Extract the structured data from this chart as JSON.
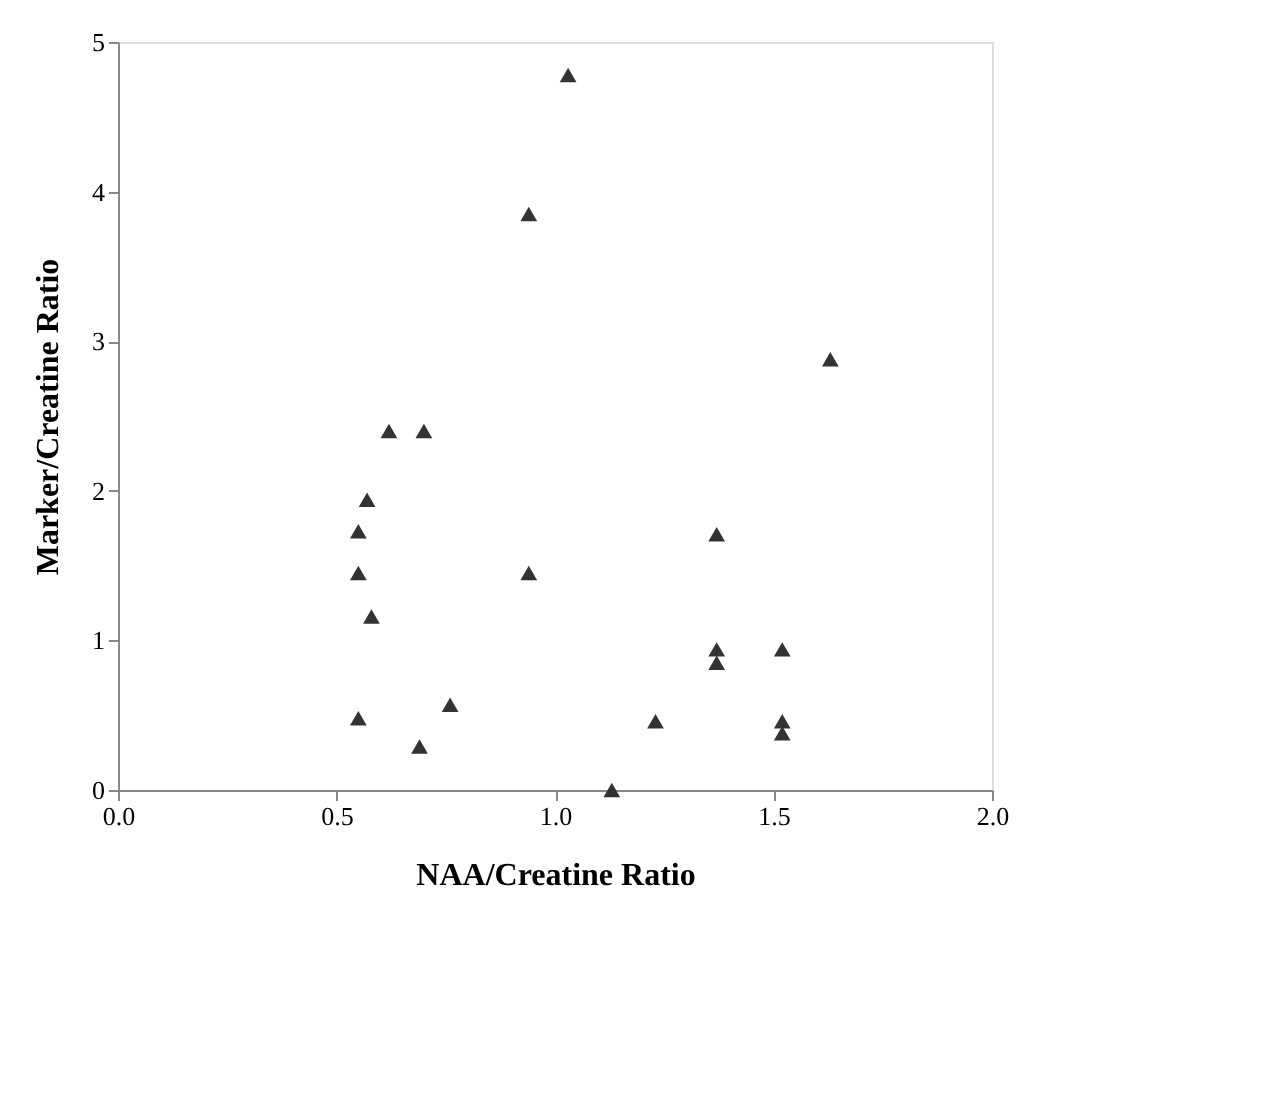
{
  "chart_data": {
    "type": "scatter",
    "xlabel": "NAA/Creatine Ratio",
    "ylabel": "Marker/Creatine Ratio",
    "marker": "triangle",
    "grid": false,
    "x": [
      1.03,
      0.94,
      1.63,
      0.62,
      0.7,
      0.57,
      0.55,
      0.55,
      0.94,
      0.58,
      0.55,
      0.76,
      0.69,
      1.13,
      1.23,
      1.37,
      1.37,
      1.37,
      1.52,
      1.52,
      1.52
    ],
    "series": [
      {
        "color": "#333333",
        "values": [
          4.78,
          3.85,
          2.88,
          2.4,
          2.4,
          1.94,
          1.73,
          1.45,
          1.45,
          1.16,
          0.48,
          0.57,
          0.29,
          0.0,
          0.46,
          1.71,
          0.94,
          0.85,
          0.94,
          0.46,
          0.38
        ]
      }
    ],
    "xlim": [
      0,
      2
    ],
    "ylim": [
      0,
      5
    ],
    "xticks": [
      {
        "value": 0,
        "label": "0.0"
      },
      {
        "value": 0.5,
        "label": "0.5"
      },
      {
        "value": 1,
        "label": "1.0"
      },
      {
        "value": 1.5,
        "label": "1.5"
      },
      {
        "value": 2,
        "label": "2.0"
      }
    ],
    "yticks": [
      0,
      1,
      2,
      3,
      4,
      5
    ]
  }
}
